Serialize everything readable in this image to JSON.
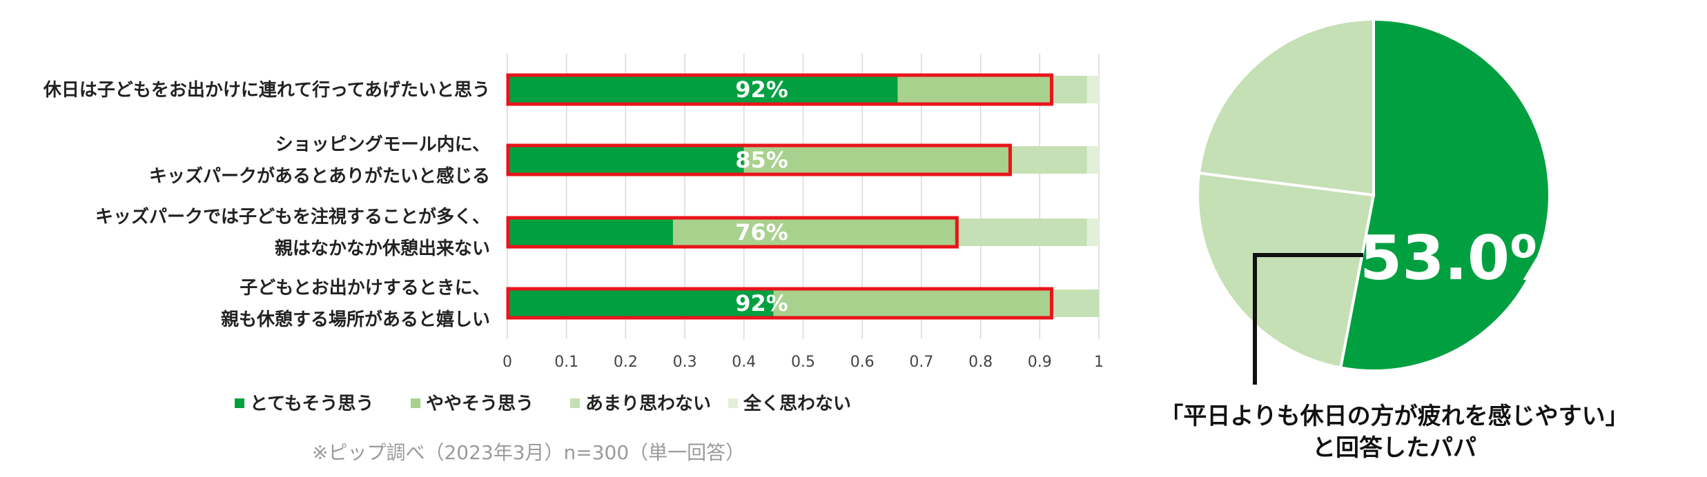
{
  "chart_data": [
    {
      "type": "bar",
      "stacked": true,
      "orientation": "horizontal",
      "categories": [
        [
          "休日は子どもをお出かけに連れて行ってあげたいと思う"
        ],
        [
          "ショッピングモール内に、",
          "キッズパークがあるとありがたいと感じる"
        ],
        [
          "キッズパークでは子どもを注視することが多く、",
          "親はなかなか休憩出来ない"
        ],
        [
          "子どもとお出かけするときに、",
          "親も休憩する場所があると嬉しい"
        ]
      ],
      "series": [
        {
          "name": "とてもそう思う",
          "color": "#00a040",
          "values": [
            0.66,
            0.4,
            0.28,
            0.45
          ]
        },
        {
          "name": "ややそう思う",
          "color": "#a9d18e",
          "values": [
            0.26,
            0.45,
            0.48,
            0.47
          ]
        },
        {
          "name": "あまり思わない",
          "color": "#c5e0b4",
          "values": [
            0.06,
            0.13,
            0.22,
            0.08
          ]
        },
        {
          "name": "全く思わない",
          "color": "#e2f0d9",
          "values": [
            0.02,
            0.02,
            0.02,
            0.0
          ]
        }
      ],
      "highlight_labels": [
        "92%",
        "85%",
        "76%",
        "92%"
      ],
      "highlight_color": "#e8141b",
      "xlim": [
        0,
        1
      ],
      "xticks": [
        "0",
        "0.1",
        "0.2",
        "0.3",
        "0.4",
        "0.5",
        "0.6",
        "0.7",
        "0.8",
        "0.9",
        "1"
      ],
      "grid": true,
      "legend_position": "bottom"
    },
    {
      "type": "pie",
      "slices": [
        {
          "value": 53.0,
          "color": "#00a040"
        },
        {
          "value": 24.0,
          "color": "#c5e0b4"
        },
        {
          "value": 23.0,
          "color": "#c5e0b4"
        }
      ],
      "slice_label": "53.0%",
      "caption": [
        "「平日よりも休日の方が疲れを感じやすい」",
        "と回答したパパ"
      ]
    }
  ],
  "source_note": "※ピップ調べ（2023年3月）n=300（単一回答）"
}
